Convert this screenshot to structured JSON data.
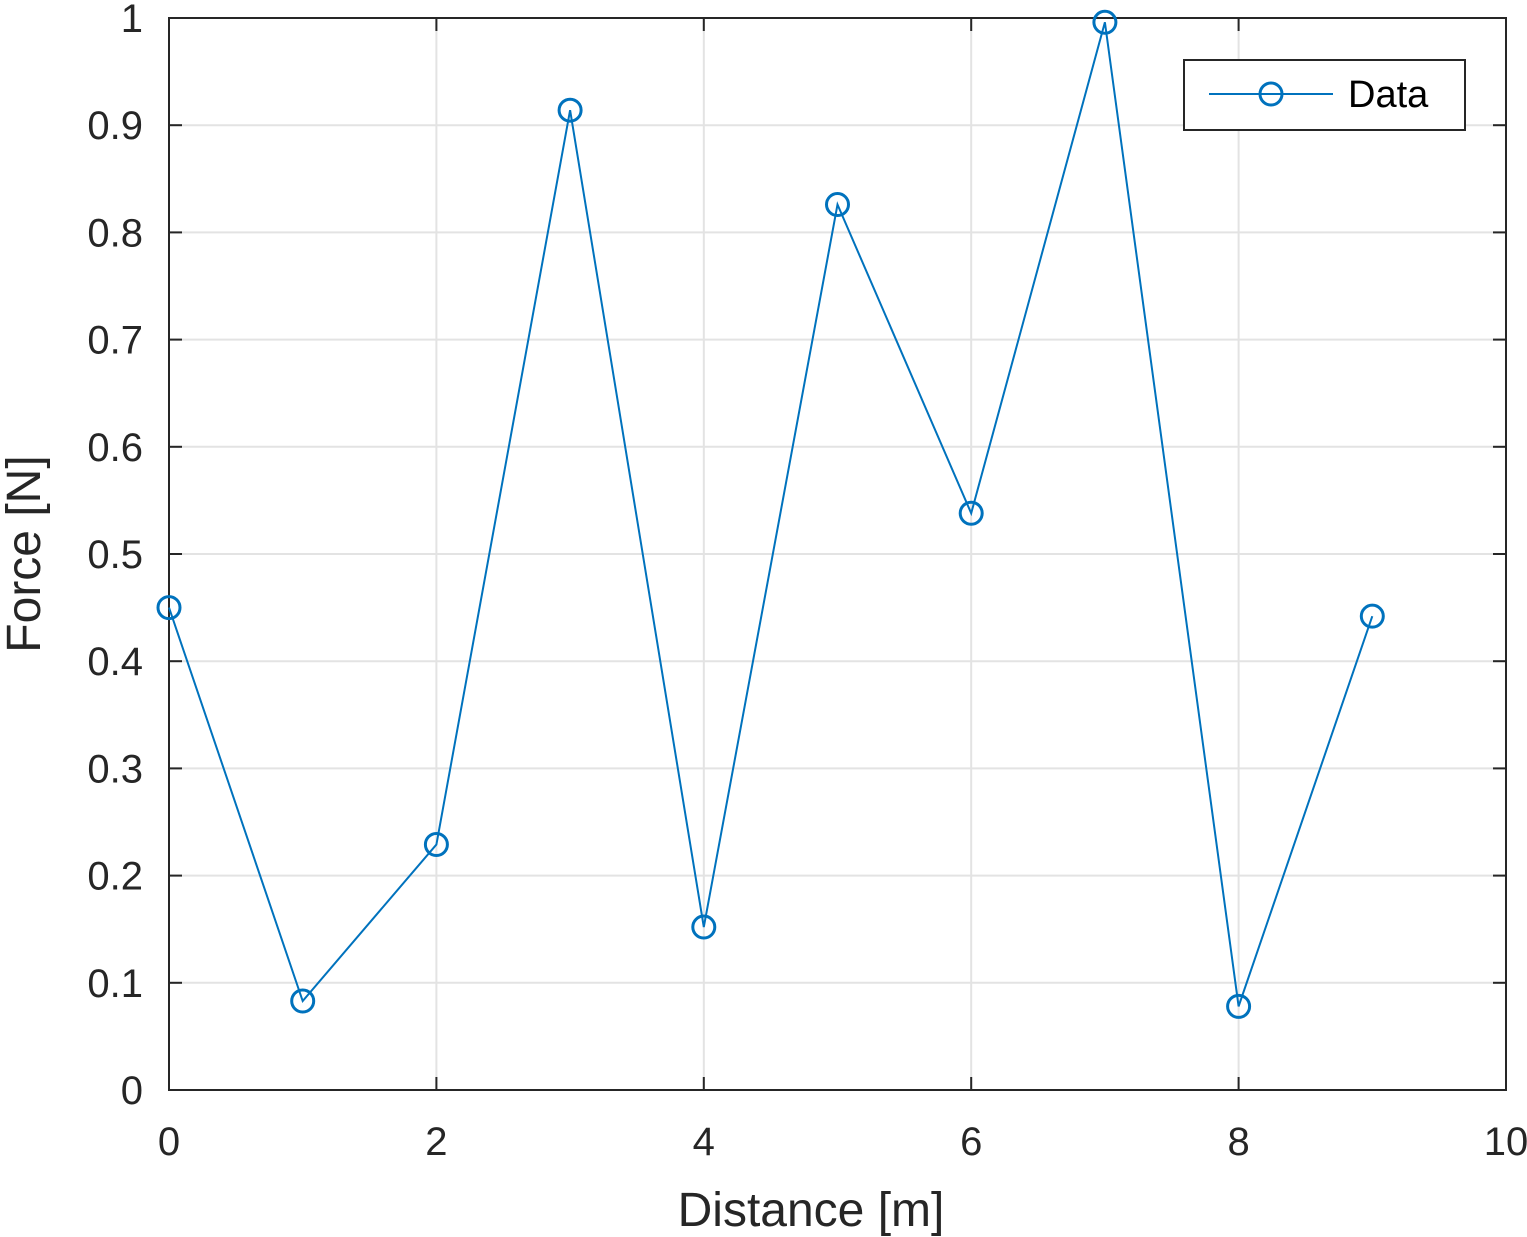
{
  "chart_data": {
    "type": "line",
    "xlabel": "Distance [m]",
    "ylabel": "Force [N]",
    "xlim": [
      0,
      10
    ],
    "ylim": [
      0,
      1
    ],
    "xticks": [
      0,
      2,
      4,
      6,
      8,
      10
    ],
    "yticks": [
      0,
      0.1,
      0.2,
      0.3,
      0.4,
      0.5,
      0.6,
      0.7,
      0.8,
      0.9,
      1
    ],
    "xtick_labels": [
      "0",
      "2",
      "4",
      "6",
      "8",
      "10"
    ],
    "ytick_labels": [
      "0",
      "0.1",
      "0.2",
      "0.3",
      "0.4",
      "0.5",
      "0.6",
      "0.7",
      "0.8",
      "0.9",
      "1"
    ],
    "grid": true,
    "legend_position": "top-right",
    "series": [
      {
        "name": "Data",
        "color": "#0072BD",
        "marker": "circle",
        "x": [
          0,
          1,
          2,
          3,
          4,
          5,
          6,
          7,
          8,
          9
        ],
        "y": [
          0.45,
          0.083,
          0.229,
          0.914,
          0.152,
          0.826,
          0.538,
          0.996,
          0.078,
          0.442
        ]
      }
    ]
  }
}
